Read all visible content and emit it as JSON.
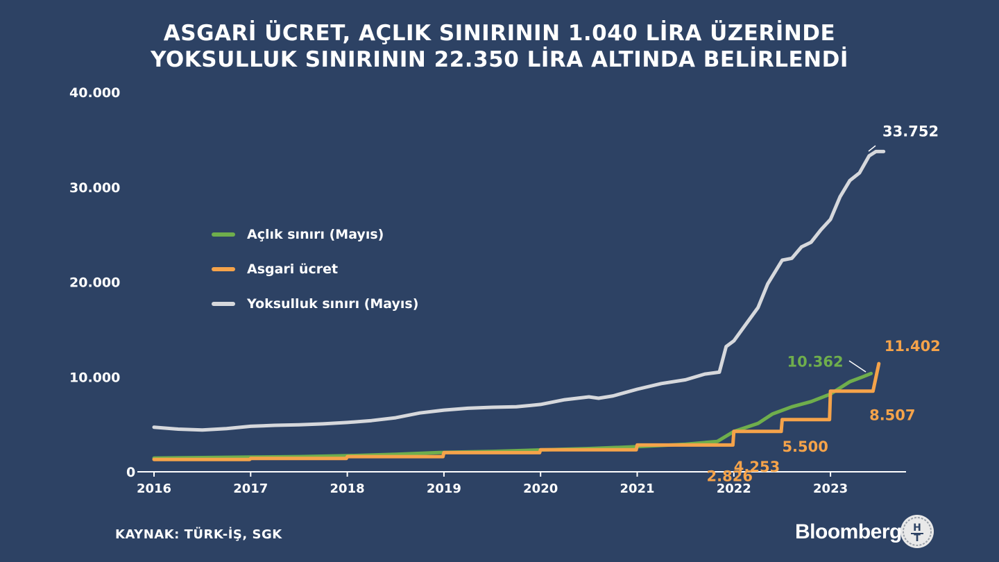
{
  "title_lines": [
    "ASGARİ ÜCRET, AÇLIK SINIRININ 1.040 LİRA ÜZERİNDE",
    "YOKSULLUK SINIRININ 22.350 LİRA ALTINDA BELİRLENDİ"
  ],
  "source": "KAYNAK: TÜRK-İŞ, SGK",
  "brand": {
    "name": "Bloomberg",
    "badge_text": "HT"
  },
  "colors": {
    "background": "#2d4264",
    "aclik": "#6fae4c",
    "asgari": "#f5a34a",
    "yoksulluk": "#d6d8dc",
    "axis": "#ffffff"
  },
  "chart_data": {
    "type": "line",
    "title": "ASGARİ ÜCRET, AÇLIK SINIRININ 1.040 LİRA ÜZERİNDE YOKSULLUK SINIRININ 22.350 LİRA ALTINDA BELİRLENDİ",
    "xlabel": "",
    "ylabel": "",
    "x_ticks": [
      "2016",
      "2017",
      "2018",
      "2019",
      "2020",
      "2021",
      "2022",
      "2023"
    ],
    "y_ticks": [
      "0",
      "10.000",
      "20.000",
      "30.000",
      "40.000"
    ],
    "y_tick_values": [
      0,
      10000,
      20000,
      30000,
      40000
    ],
    "xlim": [
      2016,
      2023.75
    ],
    "ylim": [
      0,
      40000
    ],
    "grid": false,
    "legend_position": "upper-left",
    "series": [
      {
        "name": "Açlık sınırı (Mayıs)",
        "key": "aclik",
        "points": [
          [
            2016,
            1450
          ],
          [
            2016.5,
            1500
          ],
          [
            2017,
            1550
          ],
          [
            2017.5,
            1600
          ],
          [
            2018,
            1700
          ],
          [
            2018.5,
            1850
          ],
          [
            2019,
            2050
          ],
          [
            2019.5,
            2150
          ],
          [
            2020,
            2300
          ],
          [
            2020.5,
            2450
          ],
          [
            2021,
            2650
          ],
          [
            2021.5,
            2900
          ],
          [
            2021.83,
            3200
          ],
          [
            2022,
            4250
          ],
          [
            2022.25,
            5100
          ],
          [
            2022.4,
            6100
          ],
          [
            2022.6,
            6850
          ],
          [
            2022.8,
            7400
          ],
          [
            2023,
            8200
          ],
          [
            2023.2,
            9500
          ],
          [
            2023.33,
            10000
          ],
          [
            2023.42,
            10362
          ]
        ]
      },
      {
        "name": "Asgari ücret",
        "key": "asgari",
        "points": [
          [
            2016,
            1300
          ],
          [
            2016.99,
            1300
          ],
          [
            2017,
            1404
          ],
          [
            2017.99,
            1404
          ],
          [
            2018,
            1603
          ],
          [
            2018.99,
            1603
          ],
          [
            2019,
            2020
          ],
          [
            2019.99,
            2020
          ],
          [
            2020,
            2324
          ],
          [
            2020.99,
            2324
          ],
          [
            2021,
            2826
          ],
          [
            2021.99,
            2826
          ],
          [
            2022,
            4253
          ],
          [
            2022.49,
            4253
          ],
          [
            2022.5,
            5500
          ],
          [
            2022.99,
            5500
          ],
          [
            2023,
            8507
          ],
          [
            2023.44,
            8507
          ],
          [
            2023.5,
            11402
          ]
        ]
      },
      {
        "name": "Yoksulluk sınırı (Mayıs)",
        "key": "yoksulluk",
        "points": [
          [
            2016,
            4700
          ],
          [
            2016.25,
            4500
          ],
          [
            2016.5,
            4400
          ],
          [
            2016.75,
            4550
          ],
          [
            2017,
            4800
          ],
          [
            2017.25,
            4900
          ],
          [
            2017.5,
            4950
          ],
          [
            2017.75,
            5050
          ],
          [
            2018,
            5200
          ],
          [
            2018.25,
            5400
          ],
          [
            2018.5,
            5700
          ],
          [
            2018.75,
            6200
          ],
          [
            2019,
            6500
          ],
          [
            2019.25,
            6700
          ],
          [
            2019.5,
            6800
          ],
          [
            2019.75,
            6850
          ],
          [
            2020,
            7100
          ],
          [
            2020.25,
            7600
          ],
          [
            2020.5,
            7900
          ],
          [
            2020.6,
            7750
          ],
          [
            2020.75,
            8000
          ],
          [
            2021,
            8700
          ],
          [
            2021.25,
            9300
          ],
          [
            2021.5,
            9700
          ],
          [
            2021.7,
            10300
          ],
          [
            2021.85,
            10500
          ],
          [
            2021.92,
            13200
          ],
          [
            2022,
            13800
          ],
          [
            2022.1,
            15200
          ],
          [
            2022.25,
            17300
          ],
          [
            2022.35,
            19800
          ],
          [
            2022.5,
            22300
          ],
          [
            2022.6,
            22500
          ],
          [
            2022.7,
            23700
          ],
          [
            2022.8,
            24200
          ],
          [
            2022.9,
            25500
          ],
          [
            2023,
            26600
          ],
          [
            2023.1,
            29000
          ],
          [
            2023.2,
            30700
          ],
          [
            2023.3,
            31500
          ],
          [
            2023.4,
            33300
          ],
          [
            2023.47,
            33752
          ],
          [
            2023.55,
            33752
          ]
        ]
      }
    ],
    "annotations": [
      {
        "key": "yoksulluk",
        "text": "33.752",
        "x": 2023.47,
        "y": 33752
      },
      {
        "key": "aclik",
        "text": "10.362",
        "x": 2023.42,
        "y": 10362
      },
      {
        "key": "asgari",
        "text": "11.402",
        "x": 2023.5,
        "y": 11402
      },
      {
        "key": "asgari",
        "text": "8.507",
        "x": 2023.0,
        "y": 8507
      },
      {
        "key": "asgari",
        "text": "5.500",
        "x": 2022.5,
        "y": 5500
      },
      {
        "key": "asgari",
        "text": "4.253",
        "x": 2022.0,
        "y": 4253
      },
      {
        "key": "asgari",
        "text": "2.826",
        "x": 2021.0,
        "y": 2826
      }
    ]
  }
}
